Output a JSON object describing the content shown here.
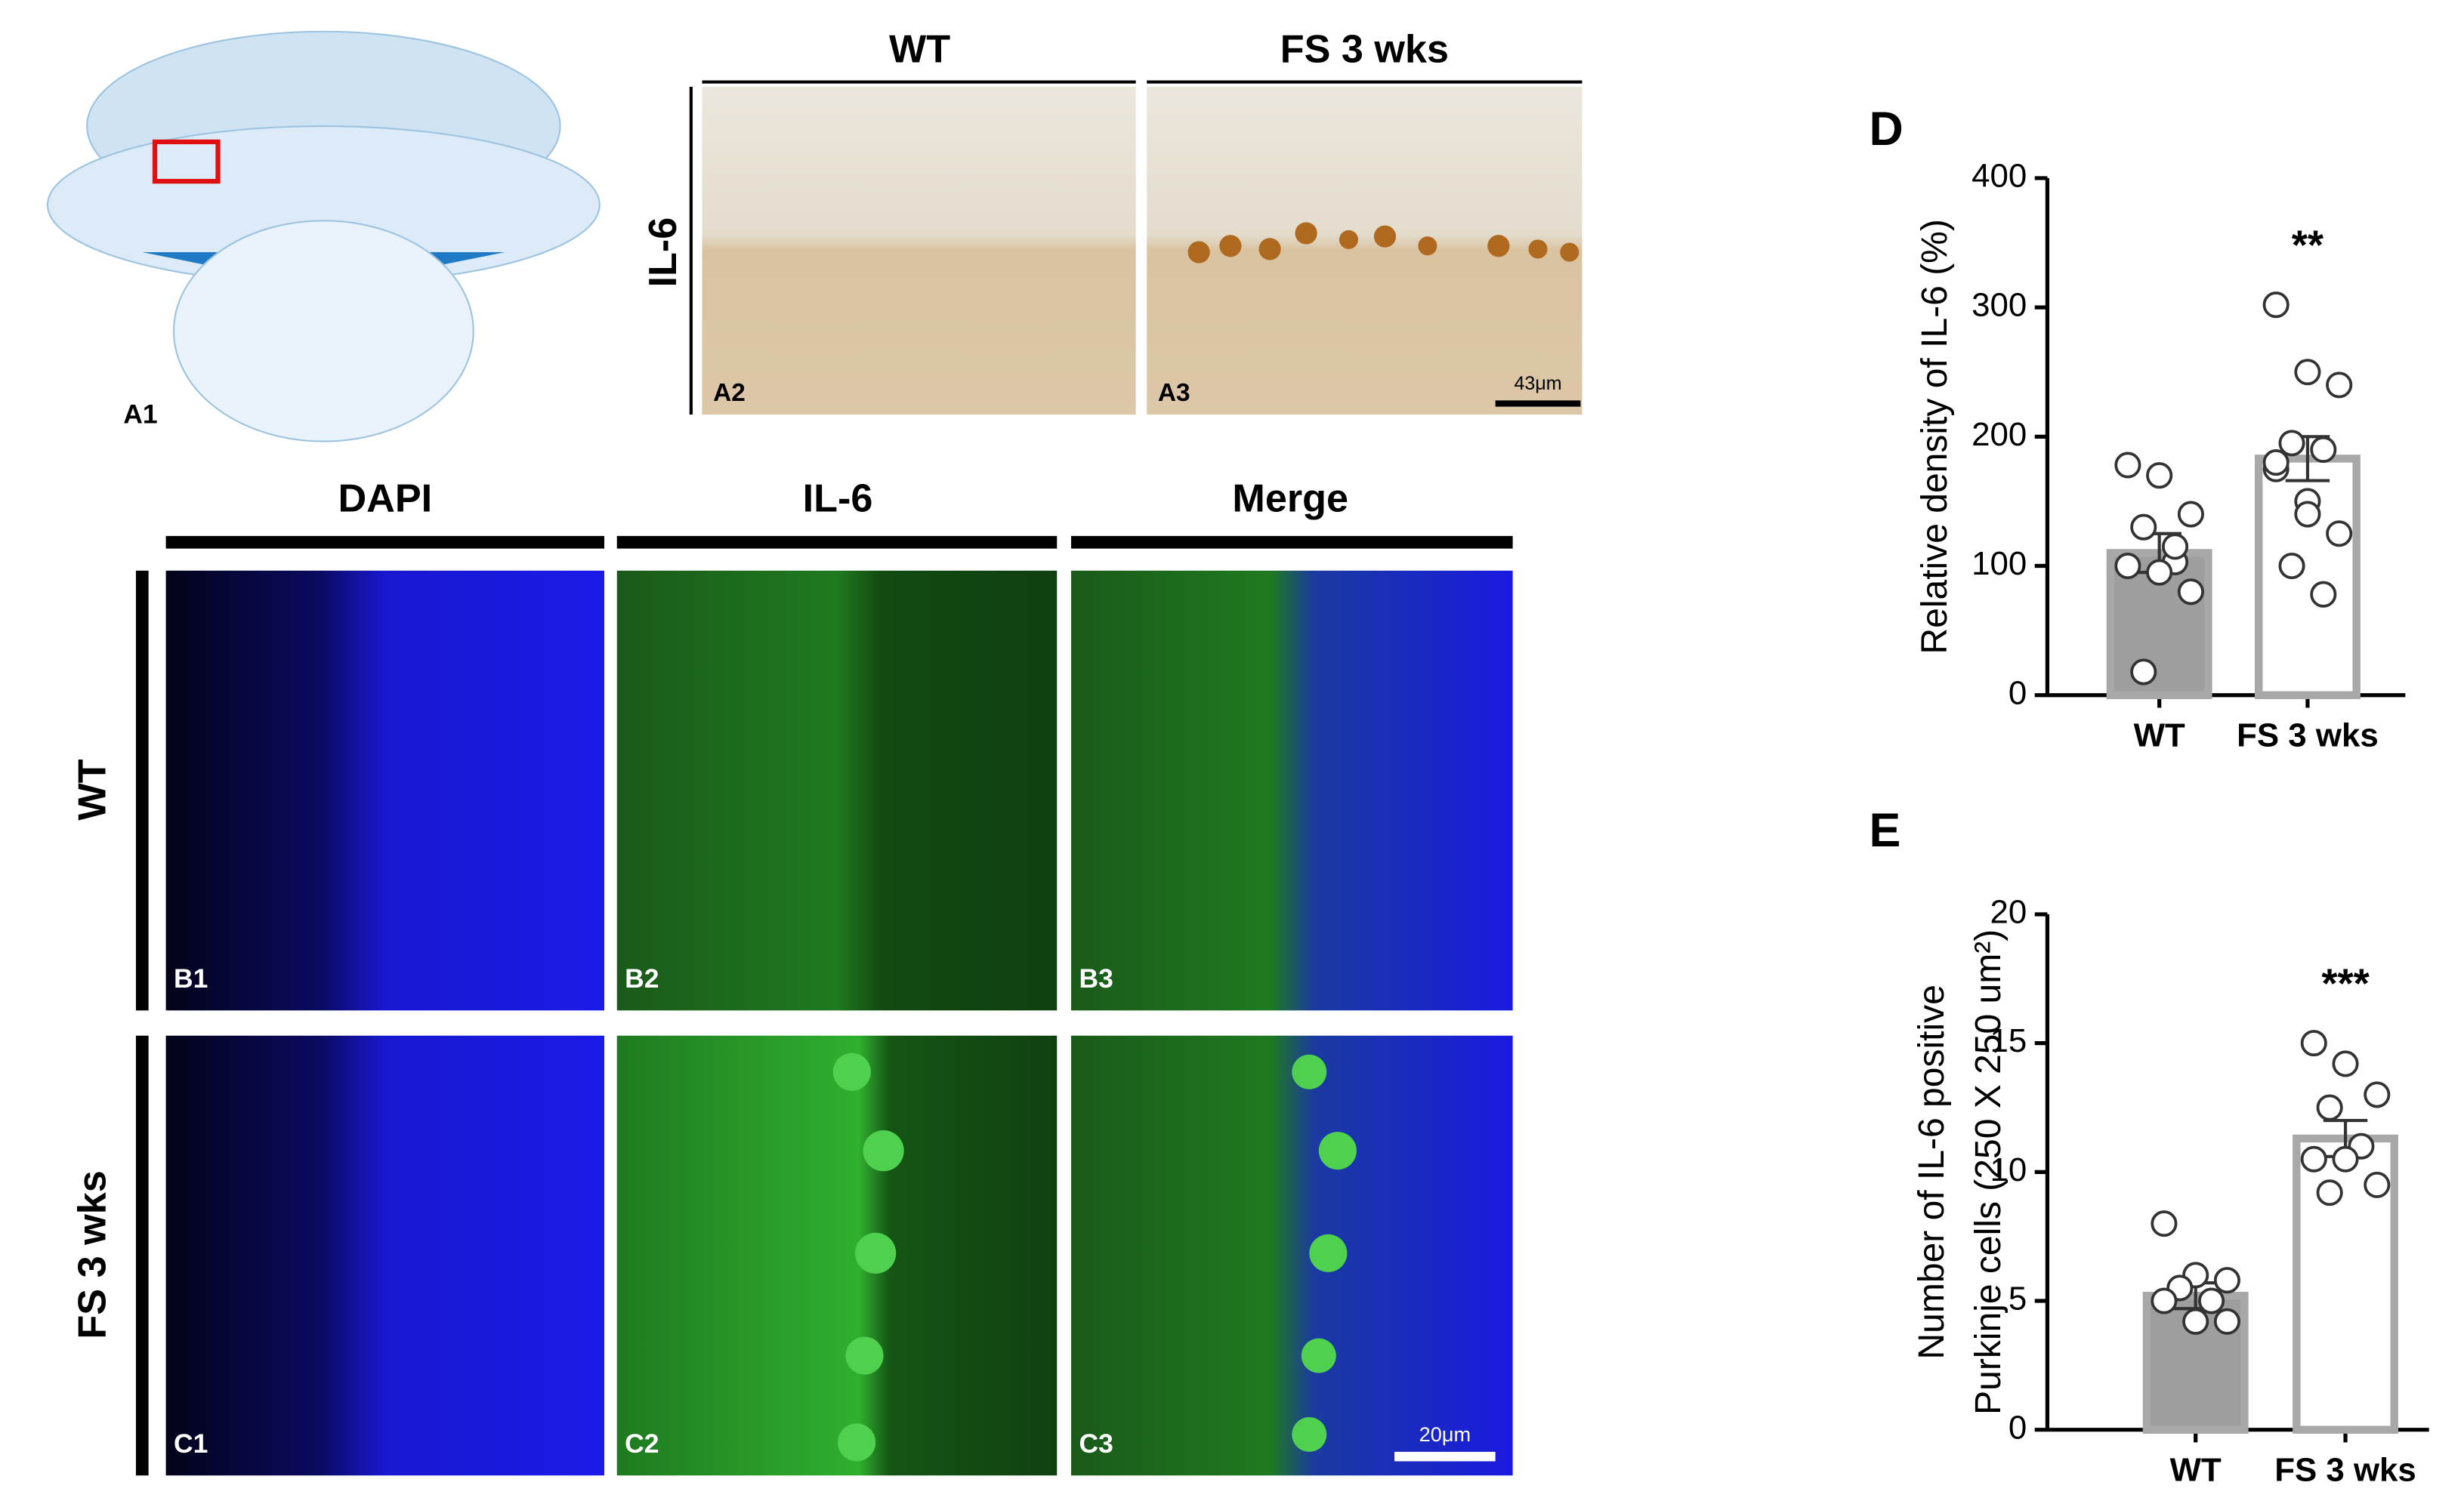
{
  "figure": {
    "a_columns": [
      "WT",
      "FS 3 wks"
    ],
    "a_row": "IL-6",
    "a_panels": [
      "A1",
      "A2",
      "A3"
    ],
    "a_scale": "43μm",
    "b_columns": [
      "DAPI",
      "IL-6",
      "Merge"
    ],
    "rows": [
      "WT",
      "FS 3 wks"
    ],
    "b_panels": [
      "B1",
      "B2",
      "B3"
    ],
    "c_panels": [
      "C1",
      "C2",
      "C3"
    ],
    "c_scale": "20μm"
  },
  "chart_data": [
    {
      "type": "bar",
      "label": "D",
      "ylabel": [
        "Relative density of IL-6 (%)"
      ],
      "categories": [
        "WT",
        "FS 3 wks"
      ],
      "values": [
        110,
        183
      ],
      "errors": [
        15,
        17
      ],
      "colors": [
        "#9e9e9e",
        "#ffffff"
      ],
      "edge_color": "#a8a8a8",
      "points": [
        [
          178,
          170,
          140,
          130,
          103,
          100,
          95,
          80,
          18,
          115
        ],
        [
          302,
          250,
          240,
          195,
          190,
          175,
          150,
          125,
          100,
          78,
          180,
          140
        ]
      ],
      "annotations": [
        {
          "category": "FS 3 wks",
          "text": "**"
        }
      ],
      "ylim": [
        0,
        400
      ],
      "yticks": [
        0,
        100,
        200,
        300,
        400
      ]
    },
    {
      "type": "bar",
      "label": "E",
      "ylabel": [
        "Number of IL-6 positive",
        "Purkinje cells (250 X 250 um²)"
      ],
      "categories": [
        "WT",
        "FS 3 wks"
      ],
      "values": [
        5.2,
        11.3
      ],
      "errors": [
        0.5,
        0.7
      ],
      "colors": [
        "#9e9e9e",
        "#ffffff"
      ],
      "edge_color": "#a8a8a8",
      "points": [
        [
          8,
          6,
          5.8,
          5.5,
          5,
          5,
          4.2,
          4.2
        ],
        [
          15,
          14.2,
          13,
          12.5,
          11,
          10.5,
          10.5,
          9.5,
          9.2
        ]
      ],
      "annotations": [
        {
          "category": "FS 3 wks",
          "text": "***"
        }
      ],
      "ylim": [
        0,
        20
      ],
      "yticks": [
        0,
        5,
        10,
        15,
        20
      ]
    }
  ]
}
